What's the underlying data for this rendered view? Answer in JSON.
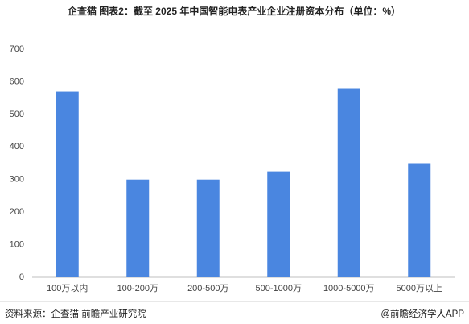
{
  "chart_data": {
    "type": "bar",
    "title": "企查猫  图表2：截至 2025 年中国智能电表产业企业注册资本分布（单位：%）",
    "categories": [
      "100万以内",
      "100-200万",
      "200-500万",
      "500-1000万",
      "1000-5000万",
      "5000万以上"
    ],
    "values": [
      570,
      300,
      300,
      325,
      580,
      350
    ],
    "color": "#4a86e0",
    "ylim": [
      0,
      700
    ],
    "yticks": [
      0,
      100,
      200,
      300,
      400,
      500,
      600,
      700
    ],
    "grid": false,
    "source": "资料来源：企查猫 前瞻产业研究院",
    "credit": "@前瞻经济学人APP"
  }
}
